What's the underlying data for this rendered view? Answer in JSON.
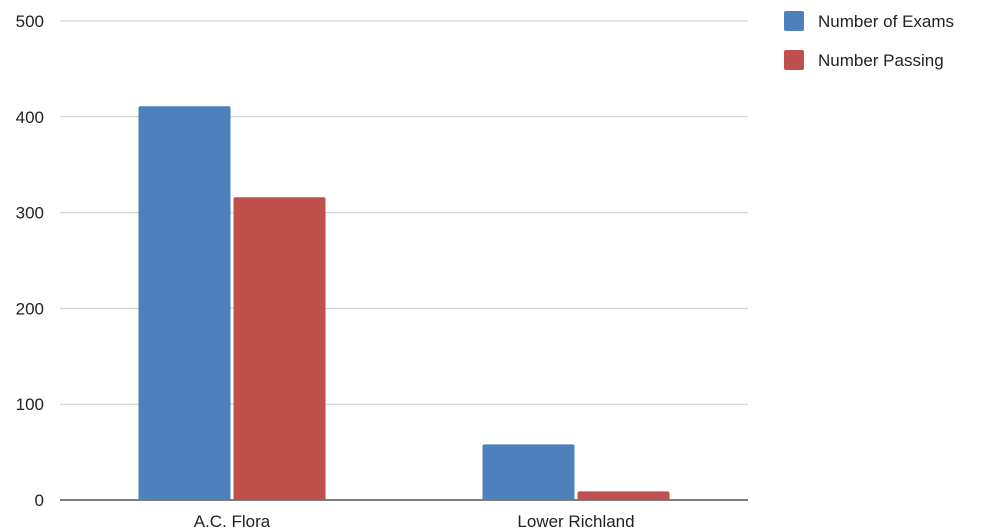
{
  "chart_data": {
    "type": "bar",
    "title": "",
    "xlabel": "",
    "ylabel": "",
    "categories": [
      "A.C. Flora",
      "Lower Richland"
    ],
    "series": [
      {
        "name": "Number of Exams",
        "values": [
          411,
          58
        ],
        "color": "#4e80bd"
      },
      {
        "name": "Number Passing",
        "values": [
          316,
          9
        ],
        "color": "#c0504e"
      }
    ],
    "ylim": [
      0,
      500
    ],
    "yticks": [
      0,
      100,
      200,
      300,
      400,
      500
    ],
    "grid": true,
    "legend_position": "top-right"
  }
}
